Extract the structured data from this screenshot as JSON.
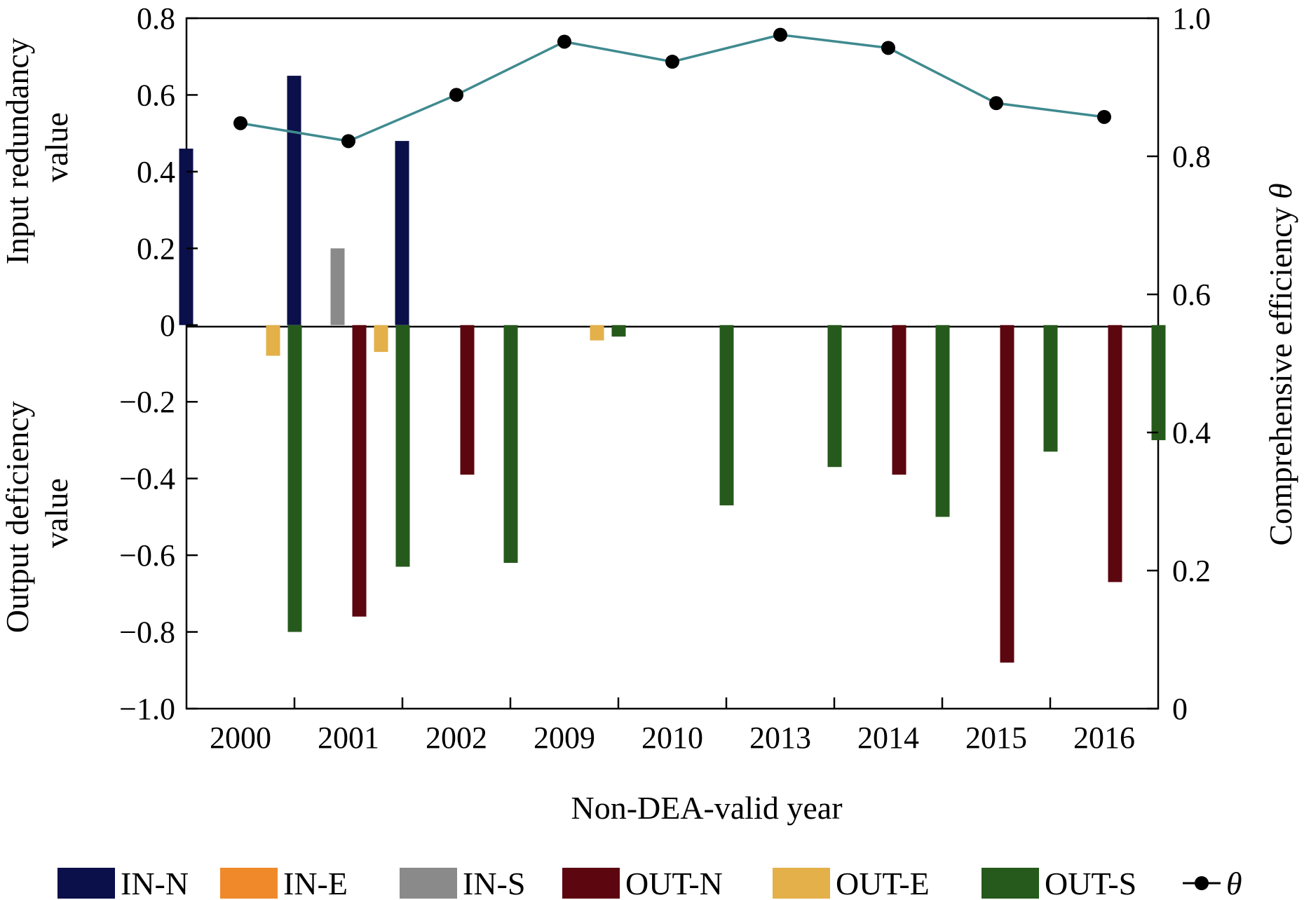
{
  "chart_data": {
    "type": "bar",
    "categories": [
      "2000",
      "2001",
      "2002",
      "2009",
      "2010",
      "2013",
      "2014",
      "2015",
      "2016"
    ],
    "xlabel": "Non-DEA-valid year",
    "ylabel_left_top": [
      "Input redundancy",
      "value"
    ],
    "ylabel_left_bottom": [
      "Output deficiency",
      "value"
    ],
    "ylabel_right_prefix": "Comprehensive efficiency ",
    "ylabel_right_symbol": "θ",
    "ylim_left": [
      -1.0,
      0.8
    ],
    "ylim_right": [
      0,
      1.0
    ],
    "yticks_left": [
      "0.8",
      "0.6",
      "0.4",
      "0.2",
      "0",
      "−0.2",
      "−0.4",
      "−0.6",
      "−0.8",
      "−1.0"
    ],
    "yticks_right": [
      "1.0",
      "0.8",
      "0.6",
      "0.4",
      "0.2",
      "0"
    ],
    "yticks_left_values": [
      0.8,
      0.6,
      0.4,
      0.2,
      0,
      -0.2,
      -0.4,
      -0.6,
      -0.8,
      -1.0
    ],
    "yticks_right_values": [
      1.0,
      0.8,
      0.6,
      0.4,
      0.2,
      0
    ],
    "grid": false,
    "legend_position": "bottom",
    "series": [
      {
        "name": "IN-N",
        "axis": "left",
        "color": "#0b0f4a",
        "values": [
          0.46,
          0.65,
          0.48,
          0,
          0,
          0,
          0,
          0,
          0
        ]
      },
      {
        "name": "IN-E",
        "axis": "left",
        "color": "#f0892a",
        "values": [
          0,
          0,
          0,
          0,
          0,
          0,
          0,
          0,
          0
        ]
      },
      {
        "name": "IN-S",
        "axis": "left",
        "color": "#8a8a8a",
        "values": [
          0,
          0.2,
          0,
          0,
          0,
          0,
          0,
          0,
          0
        ]
      },
      {
        "name": "OUT-N",
        "axis": "left",
        "color": "#5c0610",
        "values": [
          0,
          -0.76,
          -0.39,
          0,
          0,
          0,
          -0.39,
          -0.88,
          -0.67
        ]
      },
      {
        "name": "OUT-E",
        "axis": "left",
        "color": "#e3b04a",
        "values": [
          -0.08,
          -0.07,
          0,
          -0.04,
          0,
          0,
          0,
          0,
          0
        ]
      },
      {
        "name": "OUT-S",
        "axis": "left",
        "color": "#265a1c",
        "values": [
          -0.8,
          -0.63,
          -0.62,
          -0.03,
          -0.47,
          -0.37,
          -0.5,
          -0.33,
          -0.3
        ]
      }
    ],
    "line": {
      "name": "θ",
      "axis": "right",
      "color": "#3f8a8f",
      "marker_color": "#000000",
      "values": [
        0.848,
        0.822,
        0.889,
        0.966,
        0.937,
        0.976,
        0.957,
        0.877,
        0.857
      ]
    }
  }
}
